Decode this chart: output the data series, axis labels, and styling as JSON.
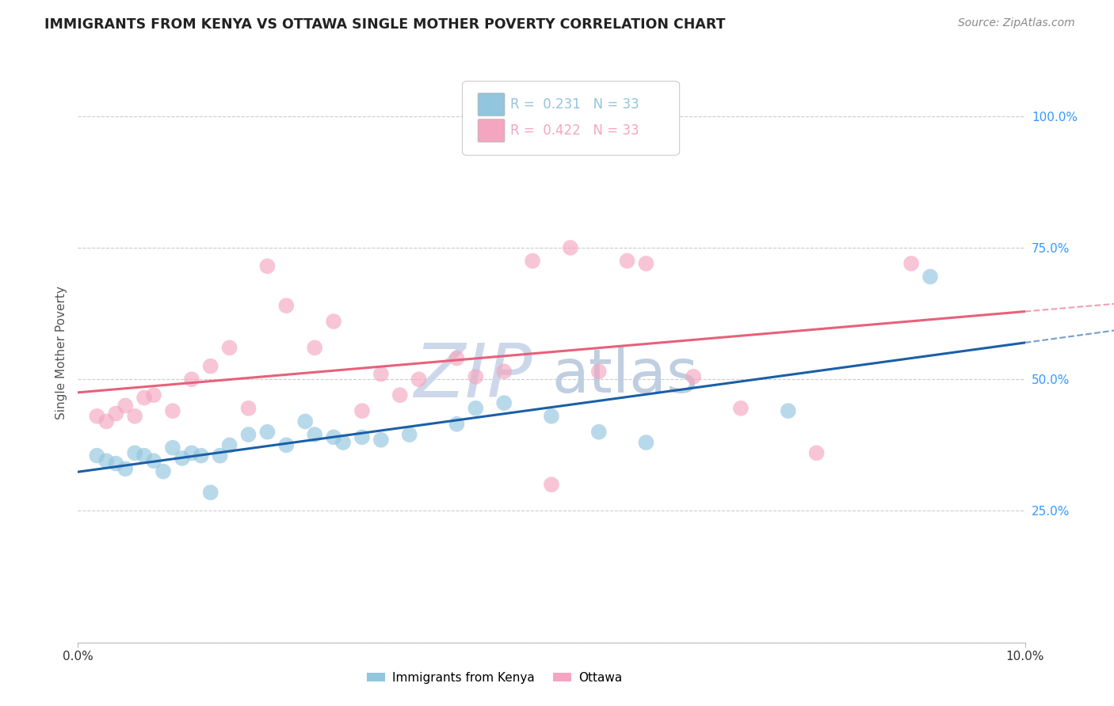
{
  "title": "IMMIGRANTS FROM KENYA VS OTTAWA SINGLE MOTHER POVERTY CORRELATION CHART",
  "source": "Source: ZipAtlas.com",
  "ylabel": "Single Mother Poverty",
  "legend1_r": "0.231",
  "legend1_n": "33",
  "legend2_r": "0.422",
  "legend2_n": "33",
  "legend_label1": "Immigrants from Kenya",
  "legend_label2": "Ottawa",
  "color_blue": "#92c5de",
  "color_pink": "#f4a6c0",
  "line_color_blue": "#1a5fa8",
  "line_color_pink": "#e8607a",
  "watermark_zip_color": "#ccd8e8",
  "watermark_atlas_color": "#c8d8e8",
  "background_color": "#ffffff",
  "grid_color": "#cccccc",
  "blue_x": [
    0.002,
    0.003,
    0.004,
    0.005,
    0.006,
    0.007,
    0.008,
    0.009,
    0.01,
    0.011,
    0.012,
    0.013,
    0.014,
    0.015,
    0.016,
    0.018,
    0.02,
    0.022,
    0.024,
    0.025,
    0.027,
    0.028,
    0.03,
    0.032,
    0.035,
    0.04,
    0.042,
    0.045,
    0.05,
    0.055,
    0.06,
    0.075,
    0.09
  ],
  "blue_y": [
    0.355,
    0.345,
    0.34,
    0.33,
    0.36,
    0.355,
    0.345,
    0.325,
    0.37,
    0.35,
    0.36,
    0.355,
    0.285,
    0.355,
    0.375,
    0.395,
    0.4,
    0.375,
    0.42,
    0.395,
    0.39,
    0.38,
    0.39,
    0.385,
    0.395,
    0.415,
    0.445,
    0.455,
    0.43,
    0.4,
    0.38,
    0.44,
    0.695
  ],
  "pink_x": [
    0.002,
    0.003,
    0.004,
    0.005,
    0.006,
    0.007,
    0.008,
    0.01,
    0.012,
    0.014,
    0.016,
    0.018,
    0.02,
    0.022,
    0.025,
    0.027,
    0.03,
    0.032,
    0.034,
    0.036,
    0.04,
    0.042,
    0.045,
    0.048,
    0.05,
    0.052,
    0.055,
    0.058,
    0.06,
    0.065,
    0.07,
    0.078,
    0.088
  ],
  "pink_y": [
    0.43,
    0.42,
    0.435,
    0.45,
    0.43,
    0.465,
    0.47,
    0.44,
    0.5,
    0.525,
    0.56,
    0.445,
    0.715,
    0.64,
    0.56,
    0.61,
    0.44,
    0.51,
    0.47,
    0.5,
    0.54,
    0.505,
    0.515,
    0.725,
    0.3,
    0.75,
    0.515,
    0.725,
    0.72,
    0.505,
    0.445,
    0.36,
    0.72
  ],
  "xlim": [
    0.0,
    0.1
  ],
  "ylim_min": 0.0,
  "ylim_max": 1.1,
  "yticks": [
    0.25,
    0.5,
    0.75,
    1.0
  ],
  "ytick_labels": [
    "25.0%",
    "50.0%",
    "75.0%",
    "100.0%"
  ],
  "xticks": [
    0.0,
    0.1
  ],
  "xtick_labels": [
    "0.0%",
    "10.0%"
  ],
  "right_axis_color": "#3399ff"
}
